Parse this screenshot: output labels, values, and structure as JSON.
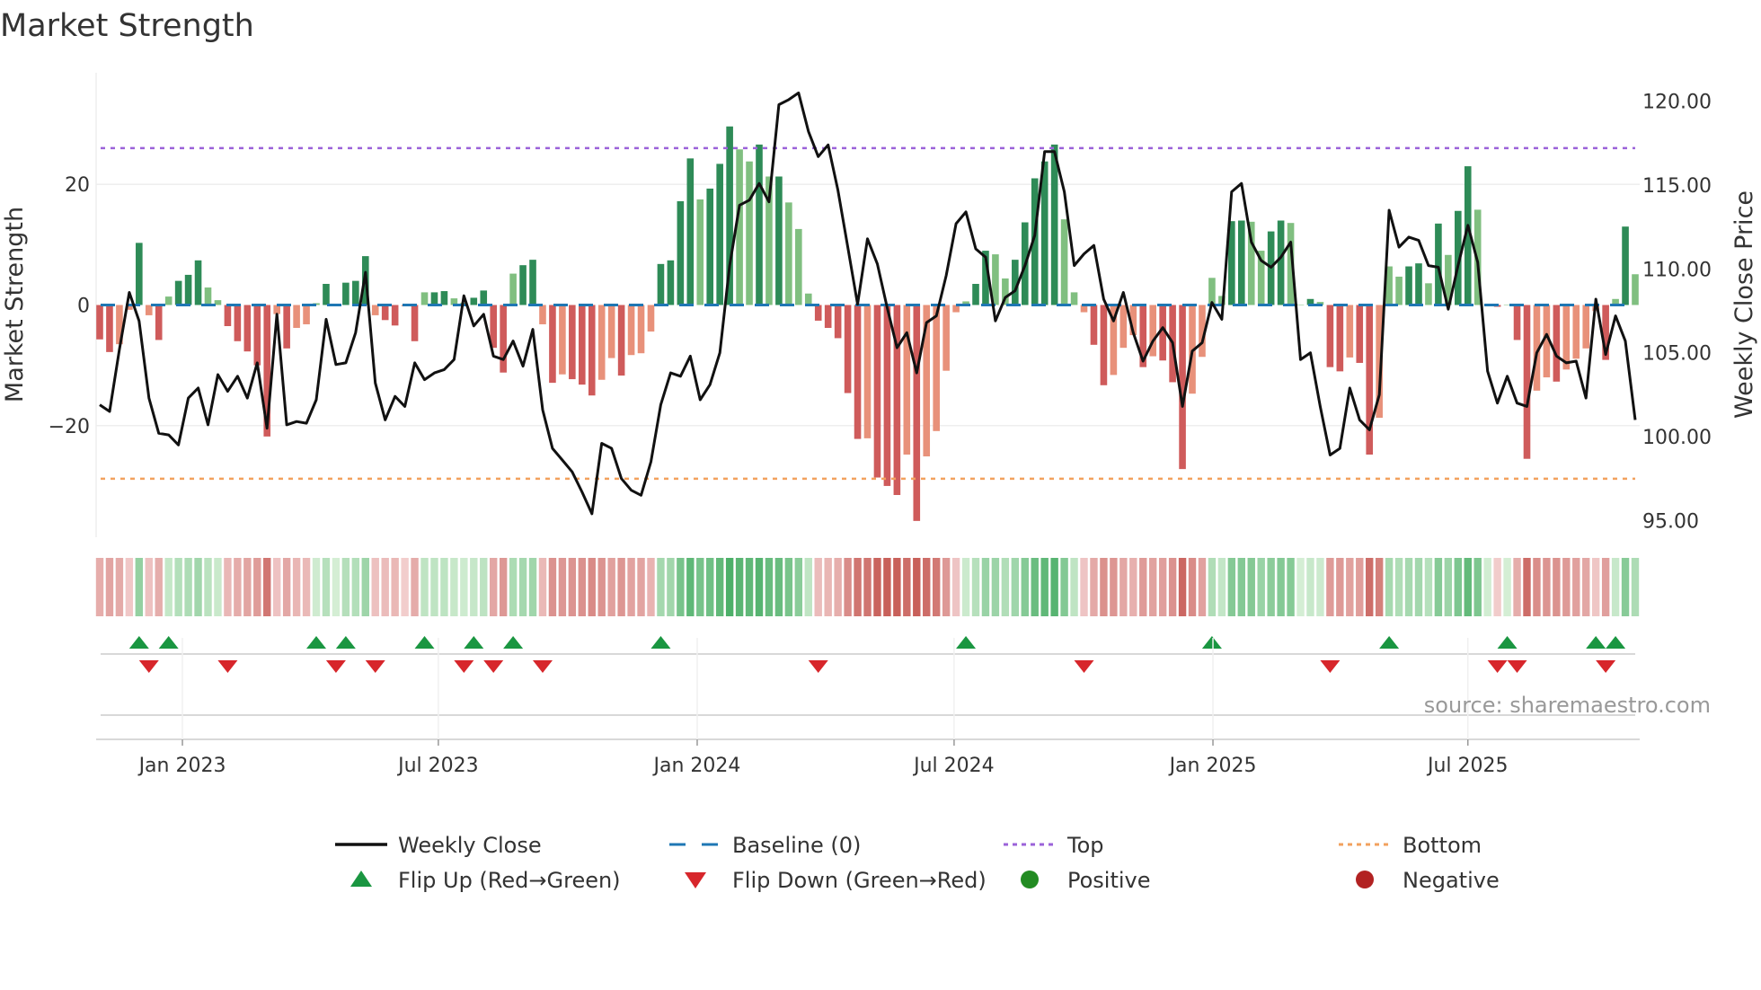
{
  "chart_data": {
    "type": "bar",
    "title": "Market Strength",
    "ylabel": "Market Strength",
    "y2label": "Weekly Close Price",
    "frequency": "weekly",
    "start_date": "2022-11-04",
    "ylim": [
      -38.5,
      38.5
    ],
    "y2lim": [
      94,
      121.7
    ],
    "yticks": [
      {
        "v": 20,
        "label": "20"
      },
      {
        "v": 0,
        "label": "0"
      },
      {
        "v": -20,
        "label": "−20"
      }
    ],
    "y2ticks": [
      {
        "v": 120,
        "label": "120.00"
      },
      {
        "v": 115,
        "label": "115.00"
      },
      {
        "v": 110,
        "label": "110.00"
      },
      {
        "v": 105,
        "label": "105.00"
      },
      {
        "v": 100,
        "label": "100.00"
      },
      {
        "v": 95,
        "label": "95.00"
      }
    ],
    "xticks": [
      {
        "week": 8.4,
        "label": "Jan 2023"
      },
      {
        "week": 34.4,
        "label": "Jul 2023"
      },
      {
        "week": 60.7,
        "label": "Jan 2024"
      },
      {
        "week": 86.8,
        "label": "Jul 2024"
      },
      {
        "week": 113.1,
        "label": "Jan 2025"
      },
      {
        "week": 139.0,
        "label": "Jul 2025"
      }
    ],
    "top_level": 26,
    "bottom_level": -28.8,
    "baseline": 0,
    "strength": [
      -5.7,
      -7.8,
      -6.5,
      -0.8,
      10.3,
      -1.7,
      -5.8,
      1.4,
      4,
      5,
      7.4,
      2.9,
      0.8,
      -3.5,
      -6,
      -7.7,
      -10,
      -21.8,
      -1.5,
      -7.2,
      -3.8,
      -3.2,
      0.3,
      3.5,
      0,
      3.7,
      4,
      8.1,
      -1.7,
      -2.5,
      -3.4,
      -0.2,
      -6,
      2.1,
      2.1,
      2.3,
      1.1,
      0.4,
      1.2,
      2.4,
      -7.1,
      -11.2,
      5.2,
      6.6,
      7.5,
      -3.2,
      -12.9,
      -11.5,
      -12.3,
      -13.2,
      -15,
      -12.4,
      -8.8,
      -11.7,
      -8.3,
      -8,
      -4.4,
      6.8,
      7.4,
      17.2,
      24.3,
      17.5,
      19.3,
      23.4,
      29.6,
      25.8,
      23.8,
      26.6,
      21.3,
      21.3,
      17,
      12.6,
      1.9,
      -2.6,
      -3.8,
      -5.5,
      -14.6,
      -22.2,
      -22.1,
      -28.6,
      -30,
      -31.5,
      -24.8,
      -35.8,
      -25.1,
      -20.9,
      -10.9,
      -1.2,
      0.6,
      3.5,
      9,
      8.4,
      4.4,
      7.5,
      13.7,
      21,
      23.8,
      26.6,
      14.2,
      2.1,
      -1.2,
      -6.6,
      -13.3,
      -11.6,
      -7.1,
      -5,
      -10.3,
      -8.5,
      -9.2,
      -12.8,
      -27.2,
      -14.7,
      -8.6,
      4.5,
      1.5,
      13.9,
      14,
      13.8,
      9,
      12.2,
      14,
      13.6,
      0,
      1,
      0.5,
      -10.3,
      -11,
      -8.7,
      -9.6,
      -24.8,
      -18.7,
      6.4,
      4.7,
      6.4,
      6.9,
      3.6,
      13.5,
      8.3,
      15.6,
      23,
      15.8,
      0.1,
      -0.3,
      0,
      -5.8,
      -25.5,
      -14.2,
      -12,
      -12.7,
      -10.7,
      -8.9,
      -7.2,
      -1,
      -9.1,
      1,
      13,
      5.1
    ],
    "weekly_close": [
      101.9,
      101.5,
      105.2,
      108.6,
      106.9,
      102.3,
      100.2,
      100.1,
      99.5,
      102.3,
      102.9,
      100.7,
      103.7,
      102.7,
      103.6,
      102.3,
      104.4,
      100.5,
      107.3,
      100.7,
      100.9,
      100.8,
      102.2,
      107,
      104.3,
      104.4,
      106.2,
      109.8,
      103.2,
      101,
      102.4,
      101.8,
      104.4,
      103.4,
      103.8,
      104,
      104.6,
      108.4,
      106.6,
      107.3,
      104.8,
      104.6,
      105.7,
      104.2,
      106.4,
      101.6,
      99.3,
      98.6,
      97.9,
      96.7,
      95.4,
      99.6,
      99.3,
      97.5,
      96.8,
      96.5,
      98.5,
      101.9,
      103.8,
      103.6,
      104.8,
      102.2,
      103.1,
      105,
      110.2,
      113.8,
      114.1,
      115.1,
      114,
      119.8,
      120.1,
      120.5,
      118.2,
      116.7,
      117.4,
      114.7,
      111.3,
      107.9,
      111.8,
      110.3,
      107.7,
      105.3,
      106.2,
      103.8,
      106.8,
      107.2,
      109.6,
      112.7,
      113.4,
      111.2,
      110.7,
      106.9,
      108.3,
      108.7,
      110.2,
      112,
      117,
      117,
      114.6,
      110.2,
      110.9,
      111.4,
      108.2,
      106.9,
      108.6,
      106.2,
      104.5,
      105.7,
      106.5,
      105.6,
      101.8,
      105.1,
      105.6,
      108,
      107,
      114.6,
      115.1,
      111.6,
      110.5,
      110.1,
      110.7,
      111.6,
      104.6,
      105,
      101.8,
      98.9,
      99.3,
      102.9,
      101,
      100.4,
      102.5,
      113.5,
      111.3,
      111.9,
      111.7,
      110.2,
      110.1,
      107.6,
      110.2,
      112.6,
      110.4,
      103.9,
      102,
      103.6,
      102,
      101.8,
      105,
      106.1,
      104.8,
      104.4,
      104.5,
      102.3,
      108.2,
      104.9,
      107.2,
      105.7,
      101
    ],
    "flip_up_weeks": [
      4,
      7,
      22,
      25,
      33,
      38,
      42,
      57,
      88,
      113,
      131,
      143,
      152,
      154
    ],
    "flip_down_weeks": [
      5,
      13,
      24,
      28,
      37,
      40,
      45,
      73,
      100,
      125,
      142,
      144,
      153
    ],
    "legend": [
      {
        "label": "Weekly Close",
        "symbol": "line"
      },
      {
        "label": "Baseline (0)",
        "symbol": "dashed"
      },
      {
        "label": "Top",
        "symbol": "dotted-purple"
      },
      {
        "label": "Bottom",
        "symbol": "dotted-orange"
      },
      {
        "label": "Flip Up (Red→Green)",
        "symbol": "triangle-up"
      },
      {
        "label": "Flip Down (Green→Red)",
        "symbol": "triangle-down"
      },
      {
        "label": "Positive",
        "symbol": "circle-green"
      },
      {
        "label": "Negative",
        "symbol": "circle-red"
      }
    ],
    "legend_position": "bottom",
    "source": "source: sharemaestro.com"
  },
  "colors": {
    "green_strong": "#2e8b57",
    "green_weak": "#80bf80",
    "red_strong": "#cf5b5b",
    "red_weak": "#e8917a",
    "top": "#9b62d9",
    "bottom": "#f2a15e",
    "baseline": "#1f77b4",
    "close": "#111111",
    "flip_up": "#1a9641",
    "flip_down": "#d7262b",
    "positive": "#228b22",
    "negative": "#b22222"
  }
}
